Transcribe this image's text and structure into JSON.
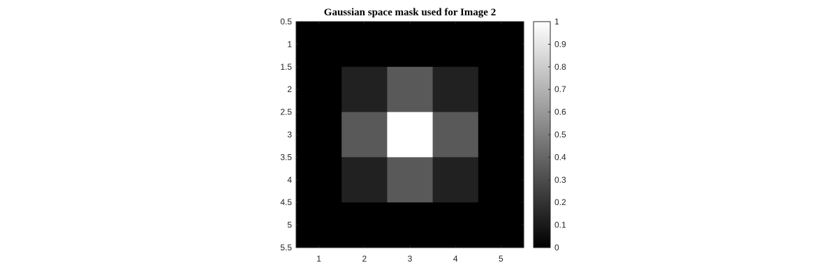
{
  "chart_data": {
    "type": "heatmap",
    "title": "Gaussian space mask used for Image 2",
    "xlabel": "",
    "ylabel": "",
    "x_ticks": [
      "1",
      "2",
      "3",
      "4",
      "5"
    ],
    "y_ticks": [
      "0.5",
      "1",
      "1.5",
      "2",
      "2.5",
      "3",
      "3.5",
      "4",
      "4.5",
      "5",
      "5.5"
    ],
    "xlim": [
      0.5,
      5.5
    ],
    "ylim": [
      0.5,
      5.5
    ],
    "y_direction": "reverse",
    "values": [
      [
        0.0,
        0.0,
        0.0,
        0.0,
        0.0
      ],
      [
        0.0,
        0.13,
        0.35,
        0.13,
        0.0
      ],
      [
        0.0,
        0.35,
        1.0,
        0.35,
        0.0
      ],
      [
        0.0,
        0.13,
        0.35,
        0.13,
        0.0
      ],
      [
        0.0,
        0.0,
        0.0,
        0.0,
        0.0
      ]
    ],
    "colormap": "gray",
    "colorbar": {
      "range": [
        0,
        1
      ],
      "ticks": [
        "0",
        "0.1",
        "0.2",
        "0.3",
        "0.4",
        "0.5",
        "0.6",
        "0.7",
        "0.8",
        "0.9",
        "1"
      ]
    }
  }
}
